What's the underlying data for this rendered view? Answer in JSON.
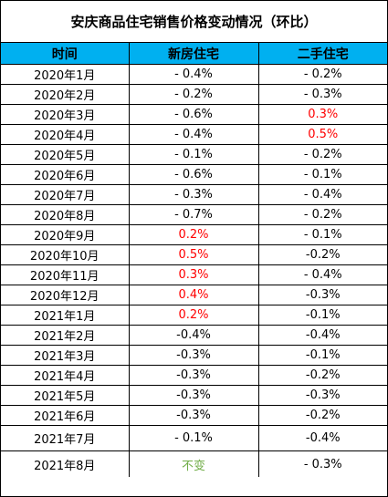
{
  "title": "安庆商品住宅销售价格变动情况（环比）",
  "columns": [
    "时间",
    "新房住宅",
    "二手住宅"
  ],
  "colors": {
    "header_bg": "#00b0f0",
    "up": "#ff0000",
    "flat": "#70ad47",
    "normal": "#000000"
  },
  "rows": [
    {
      "time": "2020年1月",
      "new": "- 0.4%",
      "second": "- 0.2%",
      "new_style": "normal",
      "second_style": "normal"
    },
    {
      "time": "2020年2月",
      "new": "- 0.2%",
      "second": "- 0.3%",
      "new_style": "normal",
      "second_style": "normal"
    },
    {
      "time": "2020年3月",
      "new": "- 0.6%",
      "second": "0.3%",
      "new_style": "normal",
      "second_style": "red"
    },
    {
      "time": "2020年4月",
      "new": "- 0.4%",
      "second": "0.5%",
      "new_style": "normal",
      "second_style": "red"
    },
    {
      "time": "2020年5月",
      "new": "- 0.1%",
      "second": "- 0.2%",
      "new_style": "normal",
      "second_style": "normal"
    },
    {
      "time": "2020年6月",
      "new": "- 0.6%",
      "second": "- 0.1%",
      "new_style": "normal",
      "second_style": "normal"
    },
    {
      "time": "2020年7月",
      "new": "- 0.3%",
      "second": "- 0.4%",
      "new_style": "normal",
      "second_style": "normal"
    },
    {
      "time": "2020年8月",
      "new": "- 0.7%",
      "second": "- 0.2%",
      "new_style": "normal",
      "second_style": "normal"
    },
    {
      "time": "2020年9月",
      "new": "0.2%",
      "second": "- 0.1%",
      "new_style": "red",
      "second_style": "normal"
    },
    {
      "time": "2020年10月",
      "new": "0.5%",
      "second": "-0.2%",
      "new_style": "red",
      "second_style": "normal"
    },
    {
      "time": "2020年11月",
      "new": "0.3%",
      "second": "- 0.4%",
      "new_style": "red",
      "second_style": "normal"
    },
    {
      "time": "2020年12月",
      "new": "0.4%",
      "second": "-0.3%",
      "new_style": "red",
      "second_style": "normal"
    },
    {
      "time": "2021年1月",
      "new": "0.2%",
      "second": "-0.1%",
      "new_style": "red",
      "second_style": "normal"
    },
    {
      "time": "2021年2月",
      "new": "-0.4%",
      "second": "-0.4%",
      "new_style": "normal",
      "second_style": "normal"
    },
    {
      "time": "2021年3月",
      "new": "-0.3%",
      "second": "-0.1%",
      "new_style": "normal",
      "second_style": "normal"
    },
    {
      "time": "2021年4月",
      "new": "-0.3%",
      "second": "-0.2%",
      "new_style": "normal",
      "second_style": "normal"
    },
    {
      "time": "2021年5月",
      "new": "-0.3%",
      "second": "-0.3%",
      "new_style": "normal",
      "second_style": "normal"
    },
    {
      "time": "2021年6月",
      "new": "-0.3%",
      "second": "-0.2%",
      "new_style": "normal",
      "second_style": "normal"
    },
    {
      "time": "2021年7月",
      "new": "- 0.1%",
      "second": "-0.4%",
      "new_style": "normal",
      "second_style": "normal"
    },
    {
      "time": "2021年8月",
      "new": "不变",
      "second": "- 0.3%",
      "new_style": "green",
      "second_style": "normal"
    }
  ]
}
